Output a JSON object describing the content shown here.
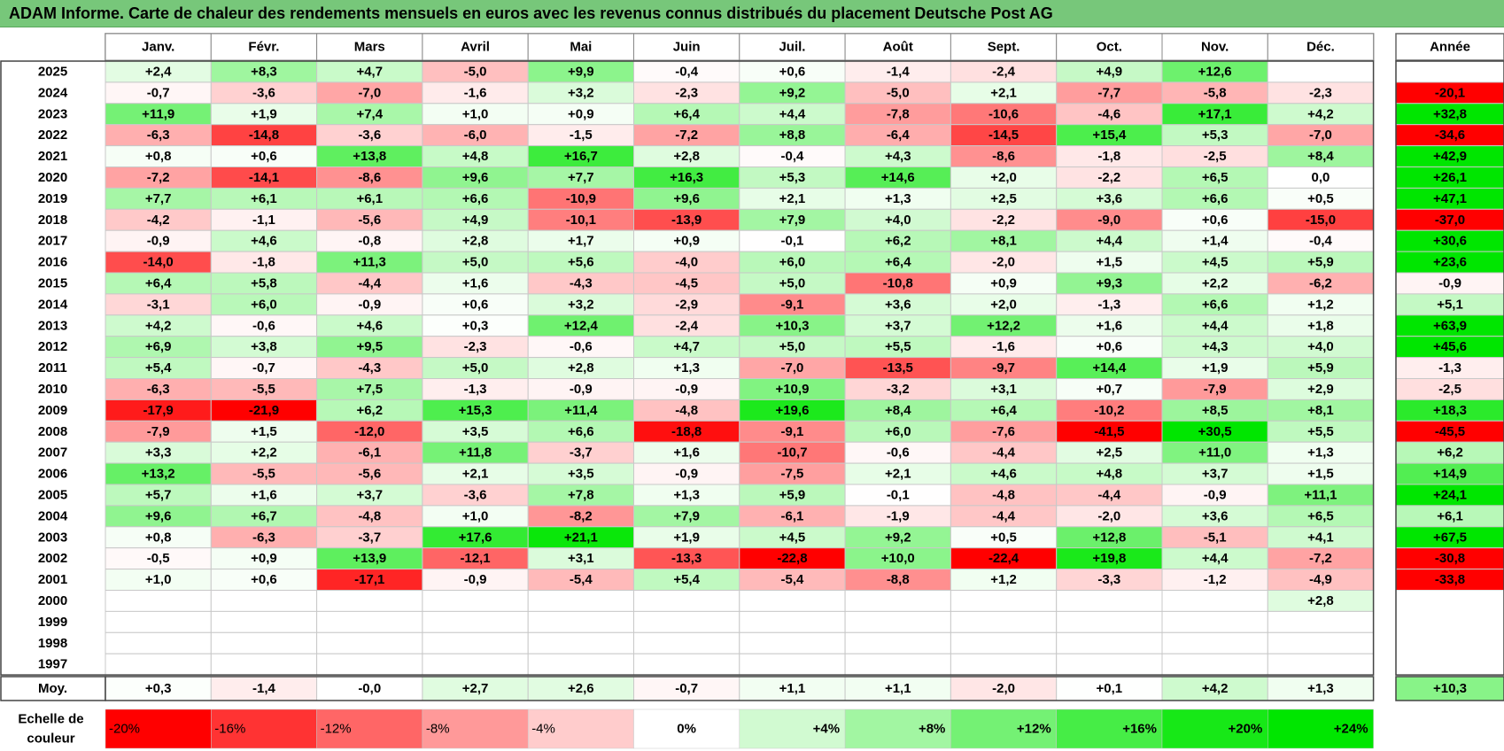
{
  "title": "ADAM Informe. Carte de chaleur des rendements mensuels en euros avec les revenus connus distribués du placement Deutsche Post AG",
  "chart_data": {
    "type": "heatmap",
    "title": "ADAM Informe. Carte de chaleur des rendements mensuels en euros avec les revenus connus distribués du placement Deutsche Post AG",
    "months": [
      "Janv.",
      "Févr.",
      "Mars",
      "Avril",
      "Mai",
      "Juin",
      "Juil.",
      "Août",
      "Sept.",
      "Oct.",
      "Nov.",
      "Déc."
    ],
    "annual_header": "Année",
    "avg_label": "Moy.",
    "rows": [
      {
        "year": "2025",
        "values": [
          "+2,4",
          "+8,3",
          "+4,7",
          "-5,0",
          "+9,9",
          "-0,4",
          "+0,6",
          "-1,4",
          "-2,4",
          "+4,9",
          "+12,6",
          ""
        ],
        "annual": ""
      },
      {
        "year": "2024",
        "values": [
          "-0,7",
          "-3,6",
          "-7,0",
          "-1,6",
          "+3,2",
          "-2,3",
          "+9,2",
          "-5,0",
          "+2,1",
          "-7,7",
          "-5,8",
          "-2,3"
        ],
        "annual": "-20,1"
      },
      {
        "year": "2023",
        "values": [
          "+11,9",
          "+1,9",
          "+7,4",
          "+1,0",
          "+0,9",
          "+6,4",
          "+4,4",
          "-7,8",
          "-10,6",
          "-4,6",
          "+17,1",
          "+4,2"
        ],
        "annual": "+32,8"
      },
      {
        "year": "2022",
        "values": [
          "-6,3",
          "-14,8",
          "-3,6",
          "-6,0",
          "-1,5",
          "-7,2",
          "+8,8",
          "-6,4",
          "-14,5",
          "+15,4",
          "+5,3",
          "-7,0"
        ],
        "annual": "-34,6"
      },
      {
        "year": "2021",
        "values": [
          "+0,8",
          "+0,6",
          "+13,8",
          "+4,8",
          "+16,7",
          "+2,8",
          "-0,4",
          "+4,3",
          "-8,6",
          "-1,8",
          "-2,5",
          "+8,4"
        ],
        "annual": "+42,9"
      },
      {
        "year": "2020",
        "values": [
          "-7,2",
          "-14,1",
          "-8,6",
          "+9,6",
          "+7,7",
          "+16,3",
          "+5,3",
          "+14,6",
          "+2,0",
          "-2,2",
          "+6,5",
          "0,0"
        ],
        "annual": "+26,1"
      },
      {
        "year": "2019",
        "values": [
          "+7,7",
          "+6,1",
          "+6,1",
          "+6,6",
          "-10,9",
          "+9,6",
          "+2,1",
          "+1,3",
          "+2,5",
          "+3,6",
          "+6,6",
          "+0,5"
        ],
        "annual": "+47,1"
      },
      {
        "year": "2018",
        "values": [
          "-4,2",
          "-1,1",
          "-5,6",
          "+4,9",
          "-10,1",
          "-13,9",
          "+7,9",
          "+4,0",
          "-2,2",
          "-9,0",
          "+0,6",
          "-15,0"
        ],
        "annual": "-37,0"
      },
      {
        "year": "2017",
        "values": [
          "-0,9",
          "+4,6",
          "-0,8",
          "+2,8",
          "+1,7",
          "+0,9",
          "-0,1",
          "+6,2",
          "+8,1",
          "+4,4",
          "+1,4",
          "-0,4"
        ],
        "annual": "+30,6"
      },
      {
        "year": "2016",
        "values": [
          "-14,0",
          "-1,8",
          "+11,3",
          "+5,0",
          "+5,6",
          "-4,0",
          "+6,0",
          "+6,4",
          "-2,0",
          "+1,5",
          "+4,5",
          "+5,9"
        ],
        "annual": "+23,6"
      },
      {
        "year": "2015",
        "values": [
          "+6,4",
          "+5,8",
          "-4,4",
          "+1,6",
          "-4,3",
          "-4,5",
          "+5,0",
          "-10,8",
          "+0,9",
          "+9,3",
          "+2,2",
          "-6,2"
        ],
        "annual": "-0,9"
      },
      {
        "year": "2014",
        "values": [
          "-3,1",
          "+6,0",
          "-0,9",
          "+0,6",
          "+3,2",
          "-2,9",
          "-9,1",
          "+3,6",
          "+2,0",
          "-1,3",
          "+6,6",
          "+1,2"
        ],
        "annual": "+5,1"
      },
      {
        "year": "2013",
        "values": [
          "+4,2",
          "-0,6",
          "+4,6",
          "+0,3",
          "+12,4",
          "-2,4",
          "+10,3",
          "+3,7",
          "+12,2",
          "+1,6",
          "+4,4",
          "+1,8"
        ],
        "annual": "+63,9"
      },
      {
        "year": "2012",
        "values": [
          "+6,9",
          "+3,8",
          "+9,5",
          "-2,3",
          "-0,6",
          "+4,7",
          "+5,0",
          "+5,5",
          "-1,6",
          "+0,6",
          "+4,3",
          "+4,0"
        ],
        "annual": "+45,6"
      },
      {
        "year": "2011",
        "values": [
          "+5,4",
          "-0,7",
          "-4,3",
          "+5,0",
          "+2,8",
          "+1,3",
          "-7,0",
          "-13,5",
          "-9,7",
          "+14,4",
          "+1,9",
          "+5,9"
        ],
        "annual": "-1,3"
      },
      {
        "year": "2010",
        "values": [
          "-6,3",
          "-5,5",
          "+7,5",
          "-1,3",
          "-0,9",
          "-0,9",
          "+10,9",
          "-3,2",
          "+3,1",
          "+0,7",
          "-7,9",
          "+2,9"
        ],
        "annual": "-2,5"
      },
      {
        "year": "2009",
        "values": [
          "-17,9",
          "-21,9",
          "+6,2",
          "+15,3",
          "+11,4",
          "-4,8",
          "+19,6",
          "+8,4",
          "+6,4",
          "-10,2",
          "+8,5",
          "+8,1"
        ],
        "annual": "+18,3"
      },
      {
        "year": "2008",
        "values": [
          "-7,9",
          "+1,5",
          "-12,0",
          "+3,5",
          "+6,6",
          "-18,8",
          "-9,1",
          "+6,0",
          "-7,6",
          "-41,5",
          "+30,5",
          "+5,5"
        ],
        "annual": "-45,5"
      },
      {
        "year": "2007",
        "values": [
          "+3,3",
          "+2,2",
          "-6,1",
          "+11,8",
          "-3,7",
          "+1,6",
          "-10,7",
          "-0,6",
          "-4,4",
          "+2,5",
          "+11,0",
          "+1,3"
        ],
        "annual": "+6,2"
      },
      {
        "year": "2006",
        "values": [
          "+13,2",
          "-5,5",
          "-5,6",
          "+2,1",
          "+3,5",
          "-0,9",
          "-7,5",
          "+2,1",
          "+4,6",
          "+4,8",
          "+3,7",
          "+1,5"
        ],
        "annual": "+14,9"
      },
      {
        "year": "2005",
        "values": [
          "+5,7",
          "+1,6",
          "+3,7",
          "-3,6",
          "+7,8",
          "+1,3",
          "+5,9",
          "-0,1",
          "-4,8",
          "-4,4",
          "-0,9",
          "+11,1"
        ],
        "annual": "+24,1"
      },
      {
        "year": "2004",
        "values": [
          "+9,6",
          "+6,7",
          "-4,8",
          "+1,0",
          "-8,2",
          "+7,9",
          "-6,1",
          "-1,9",
          "-4,4",
          "-2,0",
          "+3,6",
          "+6,5"
        ],
        "annual": "+6,1"
      },
      {
        "year": "2003",
        "values": [
          "+0,8",
          "-6,3",
          "-3,7",
          "+17,6",
          "+21,1",
          "+1,9",
          "+4,5",
          "+9,2",
          "+0,5",
          "+12,8",
          "-5,1",
          "+4,1"
        ],
        "annual": "+67,5"
      },
      {
        "year": "2002",
        "values": [
          "-0,5",
          "+0,9",
          "+13,9",
          "-12,1",
          "+3,1",
          "-13,3",
          "-22,8",
          "+10,0",
          "-22,4",
          "+19,8",
          "+4,4",
          "-7,2"
        ],
        "annual": "-30,8"
      },
      {
        "year": "2001",
        "values": [
          "+1,0",
          "+0,6",
          "-17,1",
          "-0,9",
          "-5,4",
          "+5,4",
          "-5,4",
          "-8,8",
          "+1,2",
          "-3,3",
          "-1,2",
          "-4,9"
        ],
        "annual": "-33,8"
      },
      {
        "year": "2000",
        "values": [
          "",
          "",
          "",
          "",
          "",
          "",
          "",
          "",
          "",
          "",
          "",
          "+2,8"
        ],
        "annual": ""
      },
      {
        "year": "1999",
        "values": [
          "",
          "",
          "",
          "",
          "",
          "",
          "",
          "",
          "",
          "",
          "",
          ""
        ],
        "annual": ""
      },
      {
        "year": "1998",
        "values": [
          "",
          "",
          "",
          "",
          "",
          "",
          "",
          "",
          "",
          "",
          "",
          ""
        ],
        "annual": ""
      },
      {
        "year": "1997",
        "values": [
          "",
          "",
          "",
          "",
          "",
          "",
          "",
          "",
          "",
          "",
          "",
          ""
        ],
        "annual": ""
      }
    ],
    "averages": [
      "+0,3",
      "-1,4",
      "-0,0",
      "+2,7",
      "+2,6",
      "-0,7",
      "+1,1",
      "+1,1",
      "-2,0",
      "+0,1",
      "+4,2",
      "+1,3"
    ],
    "annual_average": "+10,3",
    "scale": {
      "label_line1": "Echelle de",
      "label_line2": "couleur",
      "steps": [
        "-20%",
        "-16%",
        "-12%",
        "-8%",
        "-4%",
        "0%",
        "+4%",
        "+8%",
        "+12%",
        "+16%",
        "+20%",
        "+24%"
      ]
    }
  },
  "colors": {
    "title_bg": "#77c77a",
    "neg_max": "#ff0000",
    "pos_max": "#00e600",
    "neutral": "#ffffff"
  }
}
